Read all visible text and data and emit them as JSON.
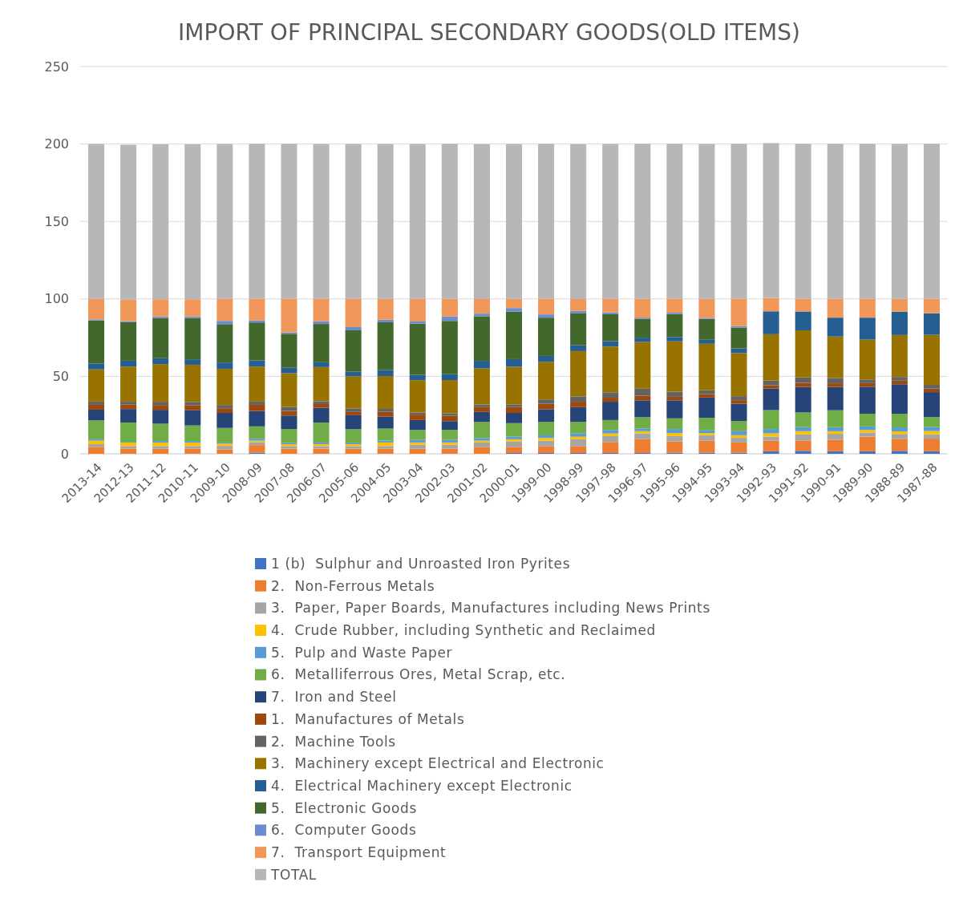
{
  "chart_data": {
    "type": "bar",
    "title": "IMPORT OF PRINCIPAL SECONDARY GOODS(OLD ITEMS)",
    "stacked": true,
    "grid": "y",
    "legend": "bottom",
    "ylim": [
      0,
      250
    ],
    "yticks": [
      0,
      50,
      100,
      150,
      200,
      250
    ],
    "categories": [
      "2013-14",
      "2012-13",
      "2011-12",
      "2010-11",
      "2009-10",
      "2008-09",
      "2007-08",
      "2006-07",
      "2005-06",
      "2004-05",
      "2003-04",
      "2002-03",
      "2001-02",
      "2000-01",
      "1999-00",
      "1998-99",
      "1997-98",
      "1996-97",
      "1995-96",
      "1994-95",
      "1993-94",
      "1992-93",
      "1991-92",
      "1990-91",
      "1989-90",
      "1988-89",
      "1987-88"
    ],
    "series": [
      {
        "name": "1 (b)  Sulphur and Unroasted Iron Pyrites",
        "color": "#4472c4",
        "values": [
          null,
          null,
          null,
          null,
          null,
          0.7,
          null,
          null,
          null,
          null,
          null,
          null,
          null,
          0.5,
          0.5,
          0.5,
          0.5,
          0.5,
          0.7,
          0.7,
          0.7,
          1.6,
          1.9,
          1.6,
          1.6,
          1.9,
          1.6
        ]
      },
      {
        "name": "2.  Non-Ferrous Metals",
        "color": "#ed7d31",
        "values": [
          4.5,
          3.3,
          3.3,
          3.3,
          2.8,
          4.9,
          3.3,
          3.3,
          3.3,
          3.3,
          3.3,
          3.3,
          4.5,
          4,
          4.5,
          4.5,
          7.1,
          8.9,
          7.3,
          7.8,
          6.6,
          6.9,
          6.6,
          7.5,
          9.5,
          7.8,
          8.2
        ]
      },
      {
        "name": "3.  Paper, Paper Boards, Manufactures including News Prints",
        "color": "#a5a5a5",
        "values": [
          1.7,
          1.7,
          1.7,
          1.7,
          2.3,
          2,
          1.7,
          1.7,
          1.7,
          1.7,
          2.6,
          2.6,
          2.8,
          3.5,
          3.5,
          4.3,
          3.8,
          3.8,
          3.5,
          3.5,
          3,
          2.6,
          4,
          3.8,
          2.6,
          3.1,
          2.8
        ]
      },
      {
        "name": "4.  Crude Rubber, including Synthetic and Reclaimed",
        "color": "#ffc000",
        "values": [
          2.3,
          2.2,
          2.3,
          2.3,
          1.5,
          0.9,
          1.2,
          1.2,
          1.2,
          2.3,
          1.4,
          1.4,
          1.2,
          1.4,
          1.7,
          1.7,
          1.7,
          1.4,
          1.9,
          1.4,
          1.7,
          2.1,
          2.1,
          1.7,
          1.7,
          1.7,
          2.1
        ]
      },
      {
        "name": "5.  Pulp and Waste Paper",
        "color": "#5b9bd5",
        "values": [
          0.9,
          0.5,
          1,
          1,
          0.7,
          1.2,
          0.9,
          1,
          1,
          1.2,
          1.7,
          1.7,
          1.7,
          1.7,
          1.7,
          2.1,
          2.3,
          1.7,
          2.6,
          1.7,
          2.6,
          2.8,
          2.6,
          2.6,
          2.3,
          2.6,
          2.6
        ]
      },
      {
        "name": "6.  Metalliferrous Ores, Metal Scrap, etc.",
        "color": "#70ad47",
        "values": [
          12.2,
          12.5,
          11.1,
          10,
          9.4,
          8,
          8.9,
          13,
          8.7,
          7.8,
          6.4,
          6.4,
          10.4,
          8.7,
          8.7,
          7.5,
          6.4,
          7.3,
          6.9,
          8.2,
          6.6,
          12.2,
          9.5,
          10.9,
          8.2,
          8.7,
          6.4
        ]
      },
      {
        "name": "7.  Iron and Steel",
        "color": "#264478",
        "values": [
          6.9,
          8.7,
          9,
          10,
          9.7,
          9.9,
          8.7,
          9.5,
          9,
          7.8,
          6.4,
          5.7,
          6.4,
          6.6,
          8.2,
          9.5,
          11.8,
          10.9,
          11.6,
          13,
          11.1,
          13.9,
          16.5,
          15.1,
          17.4,
          19.1,
          16.1
        ]
      },
      {
        "name": "1.  Manufactures of Metals",
        "color": "#9e480e",
        "values": [
          3.1,
          3,
          3.1,
          3.1,
          3,
          4,
          3,
          2.4,
          2.1,
          3,
          3.5,
          3.5,
          3.1,
          3.8,
          3.5,
          3.5,
          2.6,
          3,
          2.3,
          2.3,
          2.3,
          2.1,
          2.6,
          2.3,
          2.3,
          2.3,
          2.3
        ]
      },
      {
        "name": "2.  Machine Tools",
        "color": "#636363",
        "values": [
          2.1,
          1.7,
          2.1,
          2.1,
          2.1,
          2.1,
          2.6,
          1.7,
          2.3,
          1.9,
          1.4,
          1.6,
          1.7,
          1.7,
          2.8,
          3.5,
          3.5,
          4.5,
          3.3,
          2.4,
          2.6,
          3.1,
          3.5,
          3.5,
          2.4,
          2.4,
          2.4
        ]
      },
      {
        "name": "3.  Machinery except Electrical and Electronic",
        "color": "#997300",
        "values": [
          20.8,
          22.7,
          24.3,
          24,
          23.4,
          22.6,
          21.7,
          22.2,
          20.8,
          21.2,
          20.8,
          21.4,
          23.3,
          24.3,
          24.3,
          29.2,
          29.5,
          30.2,
          32.5,
          30,
          27.8,
          29.9,
          30.4,
          26.7,
          25.7,
          27.1,
          32.3
        ]
      },
      {
        "name": "4.  Electrical Machinery except Electronic",
        "color": "#255e91",
        "values": [
          3.8,
          3.8,
          3.8,
          3.5,
          4,
          4,
          3.5,
          3.1,
          3,
          3.8,
          3.5,
          3.8,
          4.9,
          4.9,
          3.8,
          3.8,
          3.5,
          2.8,
          2.8,
          2.6,
          3.1,
          14.8,
          12.2,
          12.2,
          14.2,
          15.1,
          13.9
        ]
      },
      {
        "name": "5.  Electronic Goods",
        "color": "#43682b",
        "values": [
          27.8,
          24.8,
          26,
          26.7,
          24.8,
          24.5,
          22,
          24.7,
          26.6,
          30.9,
          33,
          34.4,
          28.8,
          30.7,
          24.7,
          20.8,
          17.4,
          12.2,
          14.8,
          13.5,
          13.4,
          null,
          null,
          null,
          null,
          null,
          null
        ]
      },
      {
        "name": "6.  Computer Goods",
        "color": "#698ed0",
        "values": [
          0.7,
          0.7,
          1,
          1,
          2.1,
          1.4,
          0.9,
          1.7,
          2.1,
          1.7,
          1.4,
          2.8,
          1.7,
          2.3,
          2.1,
          1.4,
          1.2,
          0.7,
          0.9,
          0.7,
          0.9,
          null,
          null,
          null,
          null,
          null,
          null
        ]
      },
      {
        "name": "7.  Transport Equipment",
        "color": "#f1975a",
        "values": [
          13.2,
          13.9,
          11.1,
          11.1,
          14.2,
          13.9,
          21.7,
          14.5,
          18.2,
          13.4,
          14.6,
          11.5,
          9.4,
          5.9,
          10.1,
          7.6,
          8.7,
          12.2,
          9,
          12.2,
          17.7,
          8.6,
          8.2,
          12.2,
          12.2,
          8.2,
          9.4
        ]
      },
      {
        "name": "TOTAL",
        "color": "#b7b7b7",
        "values": [
          100,
          100,
          100,
          100,
          100,
          100,
          100,
          100,
          100,
          100,
          100,
          100,
          100,
          100,
          100,
          100,
          100,
          100,
          100,
          100,
          100,
          100,
          100,
          100,
          100,
          100,
          100
        ]
      }
    ]
  }
}
